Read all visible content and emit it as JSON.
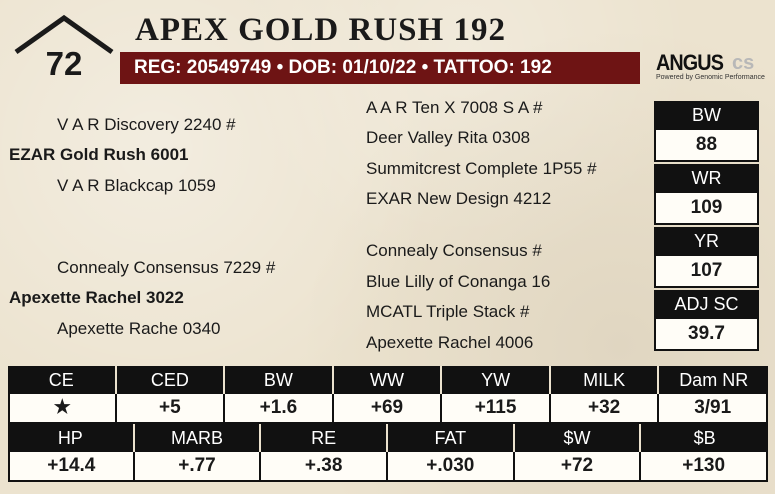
{
  "lot": {
    "number": "72"
  },
  "animal": {
    "name": "APEX GOLD RUSH 192",
    "registration_line": "REG: 20549749 • DOB: 01/10/22 • TATTOO: 192"
  },
  "logo": {
    "word": "ANGUS",
    "suffix": "cs",
    "tagline": "Powered by Genomic Performance"
  },
  "pedigree": {
    "sire_sire": "V A R Discovery 2240 #",
    "sire": "EZAR Gold Rush 6001",
    "sire_dam": "V A R Blackcap 1059",
    "dam_sire": "Connealy Consensus 7229 #",
    "dam": "Apexette Rachel 3022",
    "dam_dam": "Apexette Rache 0340",
    "g3": [
      "A A R Ten X 7008 S A #",
      "Deer Valley Rita 0308",
      "Summitcrest Complete 1P55 #",
      "EXAR New Design 4212",
      "Connealy Consensus #",
      "Blue Lilly of Conanga 16",
      "MCATL Triple Stack #",
      "Apexette Rachel 4006"
    ]
  },
  "stats": [
    {
      "label": "BW",
      "value": "88"
    },
    {
      "label": "WR",
      "value": "109"
    },
    {
      "label": "YR",
      "value": "107"
    },
    {
      "label": "ADJ SC",
      "value": "39.7"
    }
  ],
  "epd_row1": {
    "headers": [
      "CE",
      "CED",
      "BW",
      "WW",
      "YW",
      "MILK",
      "Dam NR"
    ],
    "values": [
      "★",
      "+5",
      "+1.6",
      "+69",
      "+115",
      "+32",
      "3/91"
    ]
  },
  "epd_row2": {
    "headers": [
      "HP",
      "MARB",
      "RE",
      "FAT",
      "$W",
      "$B"
    ],
    "values": [
      "+14.4",
      "+.77",
      "+.38",
      "+.030",
      "+72",
      "+130"
    ]
  },
  "colors": {
    "reg_bar": "#6e1414",
    "background": "#ece3cf",
    "header_bg": "#111111"
  }
}
